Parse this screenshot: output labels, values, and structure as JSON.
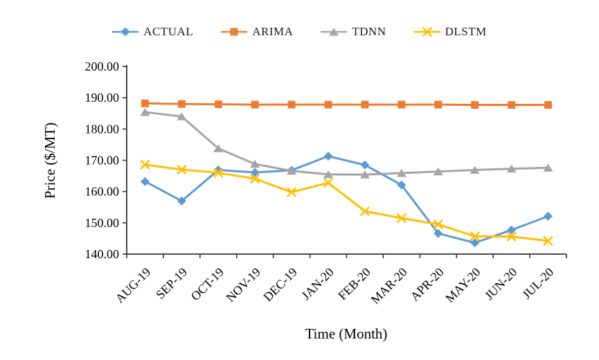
{
  "chart_data": {
    "type": "line",
    "title": "",
    "xlabel": "Time (Month)",
    "ylabel": "Price ($/MT)",
    "ylim": [
      140,
      200
    ],
    "ytick_step": 10,
    "grid": false,
    "legend_position": "top",
    "categories": [
      "AUG-19",
      "SEP-19",
      "OCT-19",
      "NOV-19",
      "DEC-19",
      "JAN-20",
      "FEB-20",
      "MAR-20",
      "APR-20",
      "MAY-20",
      "JUN-20",
      "JUL-20"
    ],
    "series": [
      {
        "name": "ACTUAL",
        "marker": "diamond",
        "color": "#5B9BD5",
        "values": [
          163.2,
          157.0,
          166.9,
          166.1,
          166.8,
          171.3,
          168.5,
          162.1,
          146.6,
          143.6,
          147.7,
          152.1
        ]
      },
      {
        "name": "ARIMA",
        "marker": "square",
        "color": "#ED7D31",
        "values": [
          188.2,
          188.0,
          187.9,
          187.8,
          187.8,
          187.8,
          187.8,
          187.8,
          187.8,
          187.7,
          187.7,
          187.7
        ]
      },
      {
        "name": "TDNN",
        "marker": "triangle",
        "color": "#A5A5A5",
        "values": [
          185.4,
          184.0,
          173.8,
          168.8,
          166.6,
          165.5,
          165.4,
          165.9,
          166.4,
          166.9,
          167.3,
          167.6
        ]
      },
      {
        "name": "DLSTM",
        "marker": "x",
        "color": "#FFC000",
        "values": [
          168.6,
          167.0,
          166.0,
          164.1,
          159.8,
          162.8,
          153.7,
          151.5,
          149.5,
          145.7,
          145.6,
          144.2
        ]
      }
    ],
    "axis_color": "#333333"
  }
}
